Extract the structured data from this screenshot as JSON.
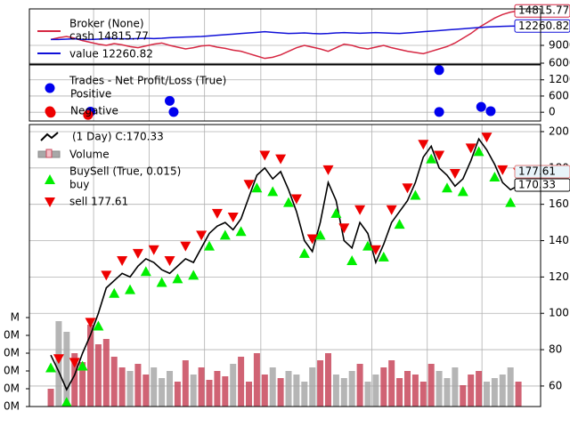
{
  "chart_data": [
    {
      "type": "line",
      "title": "Broker (None)",
      "series": [
        {
          "name": "cash 14815.77",
          "color": "#d62742",
          "values": [
            10000,
            10300,
            10500,
            10200,
            9800,
            9500,
            9200,
            9000,
            9300,
            9100,
            8800,
            8600,
            8900,
            9200,
            9400,
            9000,
            8700,
            8400,
            8600,
            8900,
            9000,
            8700,
            8500,
            8200,
            8000,
            7600,
            7200,
            6800,
            7000,
            7400,
            8000,
            8600,
            9000,
            8700,
            8400,
            8000,
            8600,
            9200,
            9000,
            8600,
            8400,
            8700,
            9000,
            8600,
            8300,
            8000,
            7800,
            7600,
            8000,
            8400,
            8800,
            9400,
            10200,
            11000,
            12000,
            12800,
            13600,
            14200,
            14600,
            14815.77
          ]
        },
        {
          "name": "value 12260.82",
          "color": "#1010d8",
          "values": [
            10000,
            10000,
            10050,
            10100,
            10000,
            10000,
            10050,
            10100,
            10150,
            10100,
            10100,
            10150,
            10200,
            10150,
            10200,
            10300,
            10350,
            10400,
            10450,
            10500,
            10600,
            10700,
            10800,
            10900,
            11000,
            11100,
            11200,
            11300,
            11200,
            11100,
            11000,
            11050,
            11100,
            11000,
            10950,
            11000,
            11100,
            11150,
            11100,
            11050,
            11100,
            11150,
            11100,
            11050,
            11000,
            11100,
            11200,
            11300,
            11400,
            11500,
            11600,
            11700,
            11800,
            11900,
            12000,
            12100,
            12150,
            12200,
            12250,
            12260.82
          ]
        }
      ],
      "xlim": [
        -2.7,
        61.8
      ],
      "xticks": [
        5.4,
        12.4,
        19.4,
        26.5,
        33.5,
        40.5,
        47.5,
        54.4
      ],
      "ylim": [
        5850,
        15150
      ],
      "yticks": [
        9000,
        6000
      ],
      "grid": true
    },
    {
      "type": "scatter",
      "title": "Trades - Net Profit/Loss (True)",
      "series": [
        {
          "name": "Positive",
          "color": "#0000ee",
          "x": [
            5,
            15,
            15.5,
            49,
            49,
            54.3,
            55.5
          ],
          "values": [
            20,
            420,
            10,
            1560,
            10,
            200,
            40
          ]
        },
        {
          "name": "Negative",
          "color": "#ee0000",
          "x": [
            0,
            4.7
          ],
          "values": [
            -20,
            -100
          ]
        }
      ],
      "xlim": [
        -2.7,
        61.8
      ],
      "xticks": [
        5.4,
        12.4,
        19.4,
        26.5,
        33.5,
        40.5,
        47.5,
        54.4
      ],
      "ylim": [
        -324,
        1751
      ],
      "yticks": [
        1200,
        600,
        0
      ],
      "grid": true
    },
    {
      "type": "price",
      "title": "(1 Day) C:170.33",
      "close": [
        77,
        68,
        58,
        66,
        78,
        88,
        100,
        114,
        118,
        122,
        120,
        126,
        130,
        128,
        124,
        122,
        126,
        130,
        128,
        136,
        144,
        148,
        150,
        146,
        152,
        164,
        176,
        180,
        174,
        178,
        168,
        156,
        140,
        134,
        150,
        172,
        162,
        140,
        136,
        150,
        144,
        128,
        138,
        150,
        156,
        162,
        172,
        186,
        192,
        180,
        176,
        170,
        174,
        184,
        196,
        190,
        182,
        172,
        168,
        170.33
      ],
      "close_color": "#000000",
      "volume": {
        "name": "Volume",
        "up_color": "#c8485c",
        "down_color": "#a8a8a8",
        "values": [
          10,
          48,
          42,
          30,
          25,
          46,
          35,
          38,
          28,
          22,
          20,
          24,
          18,
          22,
          16,
          20,
          14,
          26,
          18,
          22,
          15,
          20,
          17,
          24,
          28,
          14,
          30,
          18,
          22,
          16,
          20,
          18,
          14,
          22,
          26,
          30,
          18,
          16,
          20,
          24,
          14,
          18,
          22,
          26,
          16,
          20,
          18,
          14,
          24,
          20,
          16,
          22,
          12,
          18,
          20,
          14,
          16,
          18,
          22,
          14
        ],
        "ylim": [
          0,
          158.5
        ],
        "yticks": [
          {
            "value": 0,
            "label": "0M"
          },
          {
            "value": 10,
            "label": "0M"
          },
          {
            "value": 20,
            "label": "0M"
          },
          {
            "value": 30,
            "label": "0M"
          },
          {
            "value": 40,
            "label": "0M"
          },
          {
            "value": 50,
            "label": "M"
          }
        ]
      },
      "buysell_title": "BuySell (True, 0.015)",
      "buy": {
        "name": "buy",
        "color": "#00ee00",
        "values": [
          70,
          null,
          51,
          null,
          71,
          null,
          93,
          null,
          111,
          null,
          113,
          null,
          123,
          null,
          117,
          null,
          119,
          null,
          121,
          null,
          137,
          null,
          143,
          null,
          145,
          null,
          169,
          null,
          167,
          null,
          161,
          null,
          133,
          null,
          143,
          null,
          155,
          null,
          129,
          null,
          137,
          null,
          131,
          null,
          149,
          null,
          165,
          null,
          185,
          null,
          169,
          null,
          167,
          null,
          189,
          null,
          175,
          null,
          161,
          null
        ]
      },
      "sell": {
        "name": "sell 177.61",
        "color": "#ee0000",
        "values": [
          null,
          75,
          null,
          73,
          null,
          95,
          null,
          121,
          null,
          129,
          null,
          133,
          null,
          135,
          null,
          129,
          null,
          137,
          null,
          143,
          null,
          155,
          null,
          153,
          null,
          171,
          null,
          187,
          null,
          185,
          null,
          163,
          null,
          141,
          null,
          179,
          null,
          147,
          null,
          157,
          null,
          135,
          null,
          157,
          null,
          169,
          null,
          193,
          null,
          187,
          null,
          177,
          null,
          191,
          null,
          197,
          null,
          179,
          null,
          177.61
        ]
      },
      "xlim": [
        -2.7,
        61.8
      ],
      "xticks": [
        5.4,
        12.4,
        19.4,
        26.5,
        33.5,
        40.5,
        47.5,
        54.4
      ],
      "ylim": [
        48.7,
        203.9
      ],
      "yticks": [
        200,
        180,
        160,
        140,
        120,
        100,
        80,
        60
      ],
      "grid": true
    }
  ]
}
